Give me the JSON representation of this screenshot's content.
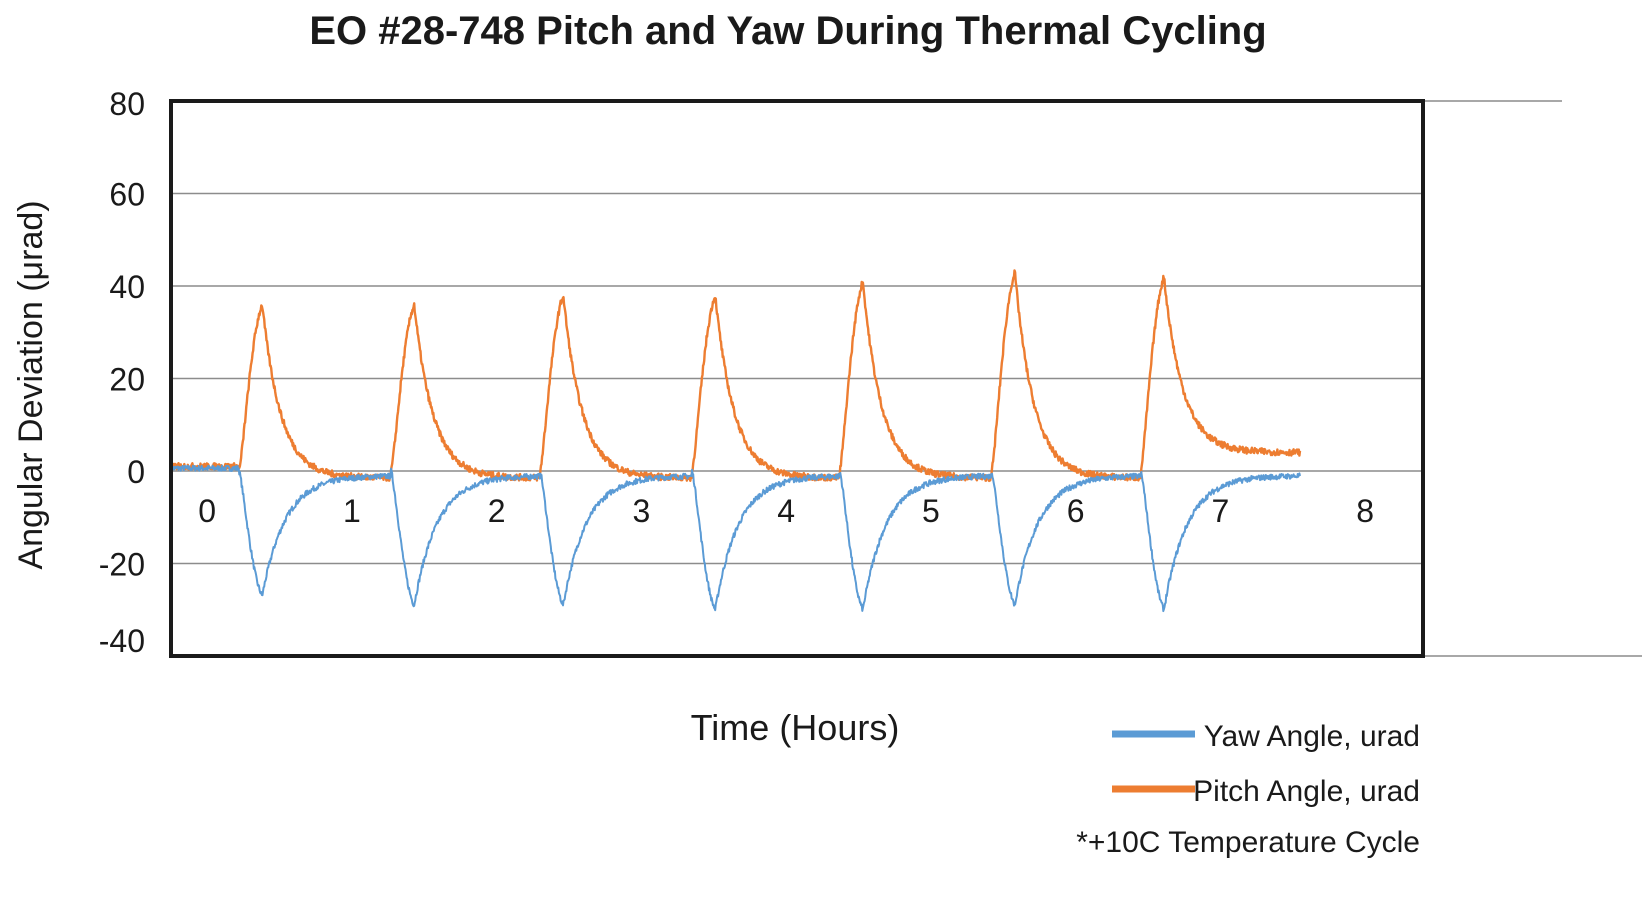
{
  "chart_data": {
    "type": "line",
    "title": "EO #28-748 Pitch and Yaw During Thermal Cycling",
    "xlabel": "Time (Hours)",
    "ylabel": "Angular Deviation (μrad)",
    "xlim": [
      -0.25,
      8.4
    ],
    "ylim": [
      -40,
      80
    ],
    "x_ticks": [
      "0",
      "1",
      "2",
      "3",
      "4",
      "5",
      "6",
      "7",
      "8"
    ],
    "y_ticks": [
      "80",
      "60",
      "40",
      "20",
      "0",
      "-20",
      "-40"
    ],
    "grid": "horizontal",
    "legend_position": "bottom-right",
    "note": "*+10C Temperature Cycle",
    "cycles": [
      {
        "start": 0.22,
        "peak_time": 0.38,
        "pitch_peak": 36,
        "yaw_min": -27
      },
      {
        "start": 1.27,
        "peak_time": 1.43,
        "pitch_peak": 36,
        "yaw_min": -29
      },
      {
        "start": 2.3,
        "peak_time": 2.46,
        "pitch_peak": 38,
        "yaw_min": -29
      },
      {
        "start": 3.35,
        "peak_time": 3.51,
        "pitch_peak": 38,
        "yaw_min": -30
      },
      {
        "start": 4.37,
        "peak_time": 4.53,
        "pitch_peak": 41,
        "yaw_min": -30
      },
      {
        "start": 5.42,
        "peak_time": 5.58,
        "pitch_peak": 43,
        "yaw_min": -29
      },
      {
        "start": 6.45,
        "peak_time": 6.61,
        "pitch_peak": 42,
        "yaw_min": -30
      }
    ],
    "series": [
      {
        "name": "Yaw Angle, urad",
        "color": "#5b9bd5",
        "baseline_start": 1,
        "end_time": 7.55,
        "end_value": 0
      },
      {
        "name": "Pitch Angle, urad",
        "color": "#ed7d31",
        "baseline_start": 1,
        "end_time": 7.55,
        "end_value": 4
      }
    ]
  }
}
